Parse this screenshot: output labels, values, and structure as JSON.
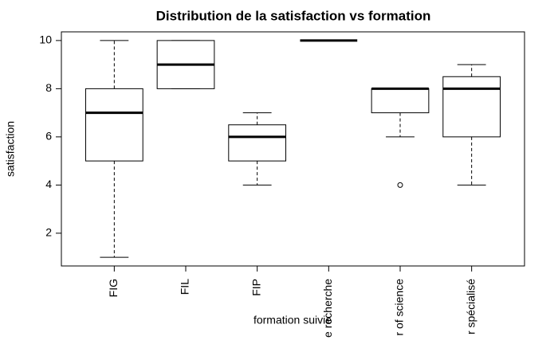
{
  "chart_data": {
    "type": "boxplot",
    "title": "Distribution de la satisfaction vs formation",
    "xlabel": "formation suivie",
    "ylabel": "satisfaction",
    "categories": [
      "FIG",
      "FIL",
      "FIP",
      "e recherche",
      "r of science",
      "r spécialisé"
    ],
    "boxes": [
      {
        "min": 1,
        "q1": 5,
        "median": 7,
        "q3": 8,
        "max": 10,
        "outliers": []
      },
      {
        "min": 8,
        "q1": 8,
        "median": 9,
        "q3": 10,
        "max": 10,
        "outliers": []
      },
      {
        "min": 4,
        "q1": 5,
        "median": 6,
        "q3": 6.5,
        "max": 7,
        "outliers": []
      },
      {
        "min": 10,
        "q1": 10,
        "median": 10,
        "q3": 10,
        "max": 10,
        "outliers": []
      },
      {
        "min": 6,
        "q1": 7,
        "median": 8,
        "q3": 8,
        "max": 8,
        "outliers": [
          4
        ]
      },
      {
        "min": 4,
        "q1": 6,
        "median": 8,
        "q3": 8.5,
        "max": 9,
        "outliers": []
      }
    ],
    "ylim": [
      0.64,
      10.36
    ],
    "yticks": [
      2,
      4,
      6,
      8,
      10
    ],
    "color": "#000000"
  }
}
